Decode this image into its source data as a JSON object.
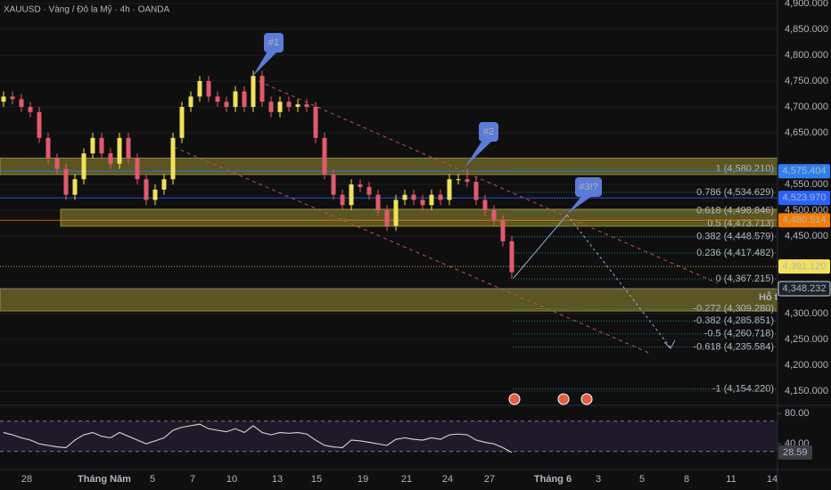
{
  "header": {
    "symbol_line": "XAUUSD · Vàng / Đô la Mỹ · 4h · OANDA"
  },
  "chart_data": {
    "type": "candlestick",
    "open": [
      4710,
      4720,
      4715,
      4700,
      4690,
      4640,
      4600,
      4580,
      4530,
      4560,
      4610,
      4640,
      4610,
      4590,
      4640,
      4600,
      4560,
      4520,
      4540,
      4560,
      4640,
      4700,
      4720,
      4750,
      4720,
      4710,
      4700,
      4730,
      4700,
      4760,
      4710,
      4690,
      4710,
      4700,
      4705,
      4700,
      4640,
      4570,
      4530,
      4510,
      4550,
      4545,
      4530,
      4500,
      4470,
      4520,
      4530,
      4520,
      4510,
      4530,
      4520,
      4560,
      4560,
      4555,
      4520,
      4500,
      4480,
      4440
    ],
    "high": [
      4730,
      4730,
      4725,
      4710,
      4700,
      4650,
      4610,
      4590,
      4570,
      4620,
      4650,
      4650,
      4620,
      4650,
      4650,
      4610,
      4570,
      4550,
      4570,
      4650,
      4710,
      4730,
      4760,
      4760,
      4730,
      4720,
      4740,
      4740,
      4770,
      4770,
      4720,
      4720,
      4720,
      4715,
      4715,
      4710,
      4650,
      4580,
      4540,
      4560,
      4560,
      4555,
      4540,
      4510,
      4530,
      4540,
      4540,
      4530,
      4540,
      4540,
      4570,
      4570,
      4580,
      4565,
      4530,
      4510,
      4490,
      4450
    ],
    "low": [
      4700,
      4705,
      4690,
      4680,
      4630,
      4590,
      4570,
      4520,
      4520,
      4550,
      4600,
      4600,
      4580,
      4580,
      4590,
      4550,
      4510,
      4510,
      4530,
      4550,
      4630,
      4690,
      4710,
      4710,
      4700,
      4690,
      4690,
      4690,
      4690,
      4700,
      4680,
      4680,
      4690,
      4690,
      4690,
      4630,
      4560,
      4520,
      4500,
      4500,
      4535,
      4520,
      4490,
      4460,
      4460,
      4510,
      4510,
      4500,
      4500,
      4510,
      4510,
      4550,
      4545,
      4510,
      4490,
      4470,
      4430,
      4367
    ],
    "close": [
      4720,
      4715,
      4700,
      4690,
      4640,
      4600,
      4580,
      4530,
      4560,
      4610,
      4640,
      4610,
      4590,
      4640,
      4600,
      4560,
      4520,
      4540,
      4560,
      4640,
      4700,
      4720,
      4750,
      4720,
      4710,
      4700,
      4730,
      4700,
      4760,
      4710,
      4690,
      4710,
      4700,
      4705,
      4700,
      4640,
      4570,
      4530,
      4510,
      4550,
      4545,
      4530,
      4500,
      4470,
      4520,
      4530,
      4520,
      4510,
      4530,
      4520,
      4560,
      4560,
      4555,
      4520,
      4500,
      4480,
      4440,
      4380
    ],
    "up_color": "#f2e15a",
    "down_color": "#e05a6e",
    "ylim": [
      4122.4,
      4906.9
    ],
    "yticks": [
      {
        "value": 4900,
        "label": "4,900.000"
      },
      {
        "value": 4850,
        "label": "4,850.000"
      },
      {
        "value": 4800,
        "label": "4,800.000"
      },
      {
        "value": 4750,
        "label": "4,750.000"
      },
      {
        "value": 4700,
        "label": "4,700.000"
      },
      {
        "value": 4650,
        "label": "4,650.000"
      },
      {
        "value": 4550,
        "label": "4,550.000"
      },
      {
        "value": 4500,
        "label": "4,500.000"
      },
      {
        "value": 4450,
        "label": "4,450.000"
      },
      {
        "value": 4300,
        "label": "4,300.000"
      },
      {
        "value": 4250,
        "label": "4,250.000"
      },
      {
        "value": 4200,
        "label": "4,200.000"
      },
      {
        "value": 4150,
        "label": "4,150.000"
      }
    ],
    "grid": true,
    "zones": [
      {
        "top": 4601,
        "bottom": 4569
      },
      {
        "top": 4502,
        "bottom": 4469
      },
      {
        "top": 4348,
        "bottom": 4305,
        "label": "Hỗ tr"
      }
    ],
    "zone_color": "#b8ab3c",
    "fib_color": "#26a69a",
    "fib_levels": [
      {
        "value": 4580.21,
        "label": "1 (4,580.210)"
      },
      {
        "value": 4534.629,
        "label": "0.786 (4,534.629)"
      },
      {
        "value": 4498.846,
        "label": "0.618 (4,498.846)"
      },
      {
        "value": 4473.713,
        "label": "0.5 (4,473.713)"
      },
      {
        "value": 4448.579,
        "label": "0.382 (4,448.579)"
      },
      {
        "value": 4417.482,
        "label": "0.236 (4,417.482)"
      },
      {
        "value": 4367.215,
        "label": "0 (4,367.215)"
      },
      {
        "value": 4309.28,
        "label": "-0.272 (4,309.280)"
      },
      {
        "value": 4285.851,
        "label": "-0.382 (4,285.851)"
      },
      {
        "value": 4260.718,
        "label": "-0.5 (4,260.718)"
      },
      {
        "value": 4235.584,
        "label": "-0.618 (4,235.584)"
      },
      {
        "value": 4154.22,
        "label": "-1 (4,154.220)"
      }
    ],
    "price_tags": [
      {
        "value": 4575.404,
        "label": "4,575.404",
        "color": "#2f7ef0"
      },
      {
        "value": 4523.97,
        "label": "4,523.970",
        "color": "#2962ff"
      },
      {
        "value": 4480.514,
        "label": "4,480.514",
        "color": "#f57c00"
      },
      {
        "value": 4391.12,
        "label": "4,391.120",
        "color": "#f2e15a"
      },
      {
        "value": 4348.232,
        "label": "4,348.232",
        "color": "#1e222d"
      }
    ],
    "annotations": [
      "#1",
      "#2",
      "#3!?"
    ],
    "x_labels": [
      "28",
      "Tháng Năm",
      "5",
      "7",
      "10",
      "13",
      "15",
      "19",
      "21",
      "24",
      "27",
      "Tháng 6",
      "3",
      "5",
      "8",
      "11",
      "14"
    ],
    "rsi": {
      "values": [
        55,
        52,
        48,
        45,
        40,
        38,
        36,
        35,
        45,
        52,
        55,
        50,
        48,
        55,
        50,
        45,
        40,
        44,
        48,
        58,
        62,
        64,
        66,
        60,
        58,
        56,
        60,
        55,
        64,
        55,
        52,
        55,
        54,
        55,
        53,
        45,
        38,
        36,
        35,
        45,
        44,
        42,
        40,
        38,
        46,
        48,
        46,
        45,
        48,
        46,
        52,
        53,
        52,
        45,
        42,
        40,
        35,
        28.59
      ],
      "ylim": [
        6.1,
        90.9
      ],
      "yticks": [
        {
          "value": 80,
          "label": "80.00"
        },
        {
          "value": 40,
          "label": "40.00"
        }
      ],
      "bands": [
        70,
        30
      ]
    }
  }
}
